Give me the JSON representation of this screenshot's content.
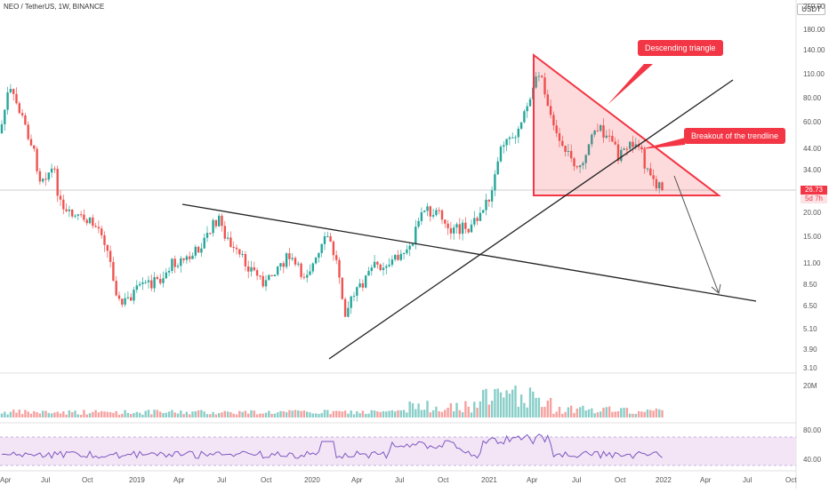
{
  "header": {
    "symbol": "NEO / TetherUS, 1W, BINANCE",
    "currency_button": "USDT"
  },
  "price_axis": {
    "labels": [
      "250.00",
      "180.00",
      "140.00",
      "110.00",
      "80.00",
      "60.00",
      "44.00",
      "34.00",
      "20.00",
      "15.00",
      "11.00",
      "8.50",
      "6.50",
      "5.10",
      "3.90",
      "3.10"
    ],
    "current_price": "26.73",
    "countdown": "5d 7h"
  },
  "volume_axis": {
    "label": "20M"
  },
  "rsi_axis": {
    "labels": [
      "80.00",
      "40.00"
    ]
  },
  "time_axis": {
    "labels": [
      "Apr",
      "Jul",
      "Oct",
      "2019",
      "Apr",
      "Jul",
      "Oct",
      "2020",
      "Apr",
      "Jul",
      "Oct",
      "2021",
      "Apr",
      "Jul",
      "Oct",
      "2022",
      "Apr",
      "Jul",
      "Oct"
    ]
  },
  "annotations": {
    "triangle_label": "Descending triangle",
    "breakout_label": "Breakout of the trendline"
  },
  "colors": {
    "up": "#26a69a",
    "down": "#ef5350",
    "accent": "#f23645",
    "rsi_line": "#7e57c2",
    "rsi_band": "#f3e5f5"
  }
}
